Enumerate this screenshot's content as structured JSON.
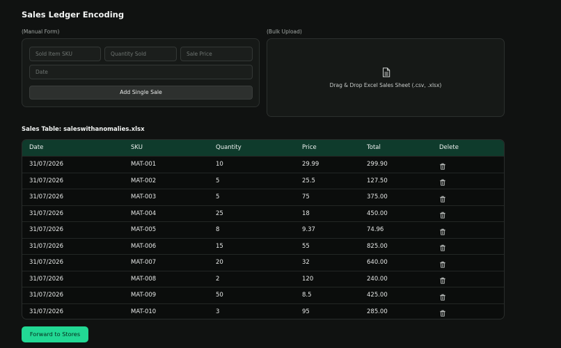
{
  "page": {
    "title": "Sales Ledger Encoding"
  },
  "manual_form": {
    "label": "(Manual Form)",
    "sku_placeholder": "Sold Item SKU",
    "quantity_placeholder": "Quantity Sold",
    "price_placeholder": "Sale Price",
    "date_placeholder": "Date",
    "add_button": "Add Single Sale"
  },
  "bulk_upload": {
    "label": "(Bulk Upload)",
    "drop_text": "Drag & Drop Excel Sales Sheet (.csv, .xlsx)",
    "icon": "file-icon"
  },
  "table": {
    "title": "Sales Table: saleswithanomalies.xlsx",
    "headers": [
      "Date",
      "SKU",
      "Quantity",
      "Price",
      "Total",
      "Delete"
    ],
    "rows": [
      {
        "date": "31/07/2026",
        "sku": "MAT-001",
        "quantity": "10",
        "price": "29.99",
        "total": "299.90"
      },
      {
        "date": "31/07/2026",
        "sku": "MAT-002",
        "quantity": "5",
        "price": "25.5",
        "total": "127.50"
      },
      {
        "date": "31/07/2026",
        "sku": "MAT-003",
        "quantity": "5",
        "price": "75",
        "total": "375.00"
      },
      {
        "date": "31/07/2026",
        "sku": "MAT-004",
        "quantity": "25",
        "price": "18",
        "total": "450.00"
      },
      {
        "date": "31/07/2026",
        "sku": "MAT-005",
        "quantity": "8",
        "price": "9.37",
        "total": "74.96"
      },
      {
        "date": "31/07/2026",
        "sku": "MAT-006",
        "quantity": "15",
        "price": "55",
        "total": "825.00"
      },
      {
        "date": "31/07/2026",
        "sku": "MAT-007",
        "quantity": "20",
        "price": "32",
        "total": "640.00"
      },
      {
        "date": "31/07/2026",
        "sku": "MAT-008",
        "quantity": "2",
        "price": "120",
        "total": "240.00"
      },
      {
        "date": "31/07/2026",
        "sku": "MAT-009",
        "quantity": "50",
        "price": "8.5",
        "total": "425.00"
      },
      {
        "date": "31/07/2026",
        "sku": "MAT-010",
        "quantity": "3",
        "price": "95",
        "total": "285.00"
      }
    ]
  },
  "actions": {
    "forward_button": "Forward to Stores"
  },
  "colors": {
    "background": "#101211",
    "table_header": "#0f3b2c",
    "accent": "#22d894"
  }
}
